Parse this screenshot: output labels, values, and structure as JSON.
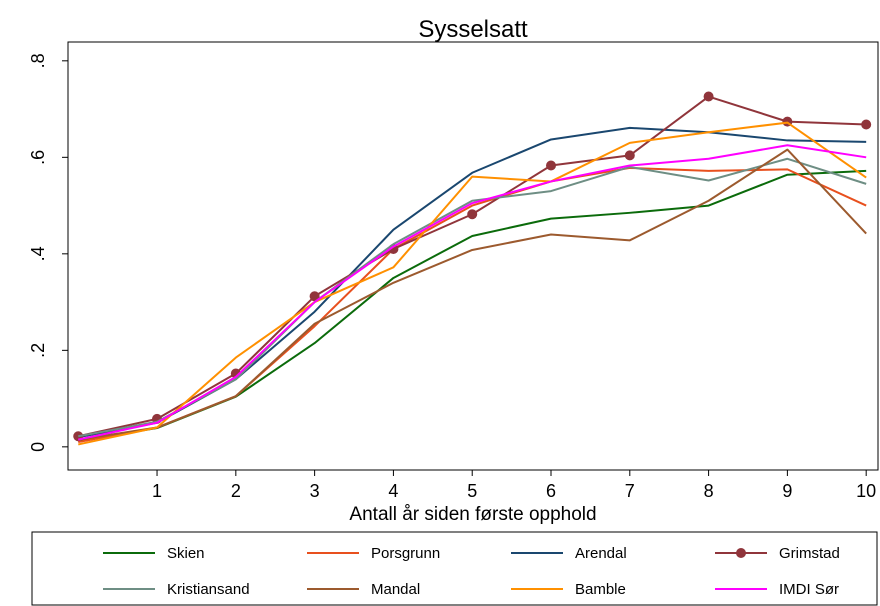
{
  "chart_data": {
    "type": "line",
    "title": "Sysselsatt",
    "xlabel": "Antall år siden første opphold",
    "x": [
      0,
      1,
      2,
      3,
      4,
      5,
      6,
      7,
      8,
      9,
      10
    ],
    "xlim": [
      -0.13,
      10.15
    ],
    "xticks": [
      1,
      2,
      3,
      4,
      5,
      6,
      7,
      8,
      9,
      10
    ],
    "ylim": [
      -0.048,
      0.839
    ],
    "yticks": [
      0,
      {
        "value": 0.2,
        "label": ".2"
      },
      {
        "value": 0.4,
        "label": ".4"
      },
      {
        "value": 0.6,
        "label": ".6"
      },
      {
        "value": 0.8,
        "label": ".8"
      }
    ],
    "legend": "bottom",
    "series": [
      {
        "name": "Skien",
        "color": "#0b6b0b",
        "values": [
          0.012,
          0.039,
          0.104,
          0.215,
          0.35,
          0.437,
          0.473,
          0.485,
          0.5,
          0.564,
          0.572
        ]
      },
      {
        "name": "Porsgrunn",
        "color": "#e8501e",
        "values": [
          0.01,
          0.04,
          0.105,
          0.25,
          0.41,
          0.5,
          0.55,
          0.578,
          0.572,
          0.575,
          0.5
        ]
      },
      {
        "name": "Arendal",
        "color": "#1a476f",
        "values": [
          0.02,
          0.05,
          0.14,
          0.28,
          0.45,
          0.568,
          0.637,
          0.661,
          0.652,
          0.635,
          0.632
        ]
      },
      {
        "name": "Grimstad",
        "color": "#90353b",
        "marker": "circle",
        "values": [
          0.022,
          0.058,
          0.152,
          0.312,
          0.41,
          0.482,
          0.583,
          0.604,
          0.726,
          0.674,
          0.668
        ]
      },
      {
        "name": "Kristiansand",
        "color": "#6e8e84",
        "values": [
          0.022,
          0.052,
          0.14,
          0.3,
          0.42,
          0.51,
          0.53,
          0.58,
          0.552,
          0.597,
          0.545
        ]
      },
      {
        "name": "Mandal",
        "color": "#9c5a2e",
        "values": [
          0.015,
          0.04,
          0.105,
          0.255,
          0.34,
          0.408,
          0.44,
          0.428,
          0.51,
          0.616,
          0.442
        ]
      },
      {
        "name": "Bamble",
        "color": "#ff9000",
        "values": [
          0.005,
          0.04,
          0.185,
          0.3,
          0.372,
          0.56,
          0.55,
          0.63,
          0.652,
          0.672,
          0.558
        ]
      },
      {
        "name": "IMDI Sør",
        "color": "#ff00ff",
        "values": [
          0.015,
          0.05,
          0.145,
          0.3,
          0.415,
          0.505,
          0.55,
          0.583,
          0.597,
          0.625,
          0.6
        ]
      }
    ]
  }
}
